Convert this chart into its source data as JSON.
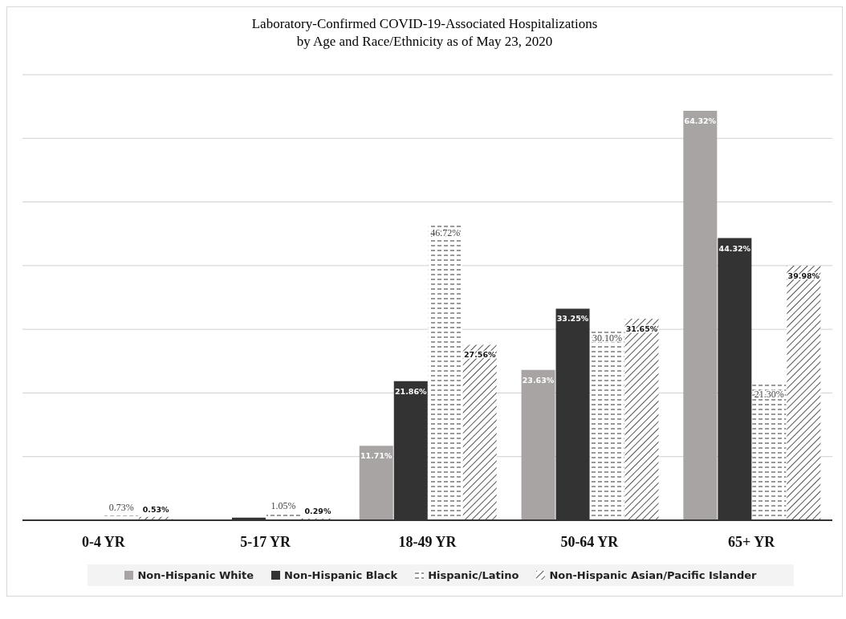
{
  "chart_data": {
    "type": "bar",
    "title": "Laboratory-Confirmed COVID-19-Associated Hospitalizations\nby Age and Race/Ethnicity as of May 23, 2020",
    "categories": [
      "0-4 YR",
      "5-17 YR",
      "18-49 YR",
      "50-64 YR",
      "65+ YR"
    ],
    "series": [
      {
        "name": "Non-Hispanic White",
        "color": "#a8a4a4",
        "values": [
          null,
          null,
          11.71,
          23.63,
          64.32
        ],
        "value_labels": [
          null,
          null,
          "11.71%",
          "23.63%",
          "64.32%"
        ]
      },
      {
        "name": "Non-Hispanic Black",
        "color": "#333333",
        "values": [
          null,
          0.4,
          21.86,
          33.25,
          44.32
        ],
        "value_labels": [
          null,
          null,
          "21.86%",
          "33.25%",
          "44.32%"
        ]
      },
      {
        "name": "Hispanic/Latino",
        "color": "#555555",
        "values": [
          0.73,
          1.05,
          46.72,
          30.1,
          21.3
        ],
        "value_labels": [
          "0.73%",
          "1.05%",
          "46.72%",
          "30.10%",
          "21.30%"
        ]
      },
      {
        "name": "Non-Hispanic Asian/Pacific Islander",
        "color": "#555555",
        "values": [
          0.53,
          0.29,
          27.56,
          31.65,
          39.98
        ],
        "value_labels": [
          "0.53%",
          "0.29%",
          "27.56%",
          "31.65%",
          "39.98%"
        ]
      }
    ],
    "ylim": [
      0,
      70
    ],
    "yticks": [
      {
        "value": 0,
        "label": null
      },
      {
        "value": 10,
        "label": null
      },
      {
        "value": 20,
        "label": null
      },
      {
        "value": 30,
        "label": null
      },
      {
        "value": 40,
        "label": null
      },
      {
        "value": 50,
        "label": null
      },
      {
        "value": 60,
        "label": null
      },
      {
        "value": 70,
        "label": null
      }
    ],
    "tick_labels": "x",
    "grid": "y",
    "legend": "bottom"
  }
}
